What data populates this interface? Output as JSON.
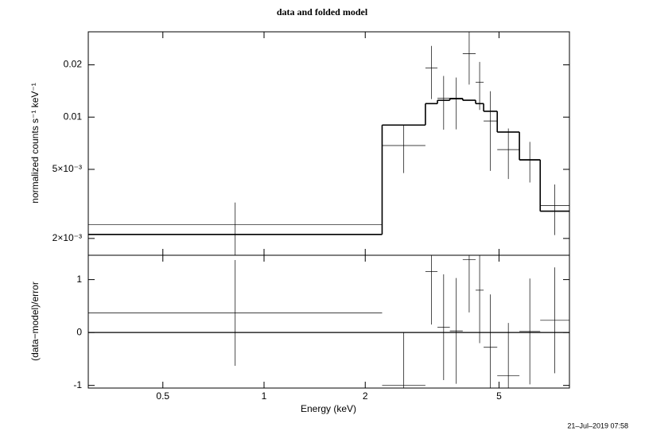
{
  "chart_data": [
    {
      "type": "step",
      "title": "data and folded model",
      "ylabel": "normalized counts s⁻¹ keV⁻¹",
      "xlog": true,
      "ylog": true,
      "xlim": [
        0.3,
        8.1
      ],
      "ylim": [
        0.0016,
        0.031
      ],
      "yticks": [
        {
          "value": 0.002,
          "label": "2×10⁻³"
        },
        {
          "value": 0.005,
          "label": "5×10⁻³"
        },
        0.01,
        0.02
      ],
      "bins": [
        0.3,
        2.245,
        3.02,
        3.28,
        3.57,
        3.9,
        4.26,
        4.5,
        4.94,
        5.75,
        6.63,
        8.1
      ],
      "data": {
        "color": "#000000",
        "values": [
          0.0024,
          0.00686,
          0.0192,
          0.01286,
          0.0127,
          0.0232,
          0.0159,
          0.0095,
          0.0065,
          0.0057,
          0.00309
        ],
        "errors": [
          0.00082,
          0.0021,
          0.0065,
          0.0044,
          0.0042,
          0.0078,
          0.0049,
          0.0046,
          0.0021,
          0.0015,
          0.001
        ]
      },
      "model": {
        "color": "#000000",
        "values": [
          0.00211,
          0.009,
          0.01196,
          0.0125,
          0.0128,
          0.0125,
          0.01196,
          0.0108,
          0.0082,
          0.00567,
          0.00287
        ]
      }
    },
    {
      "type": "residual",
      "xlabel": "Energy (keV)",
      "ylabel": "(data−model)/error",
      "xticks": [
        0.5,
        1,
        2,
        5
      ],
      "ylim": [
        -1.05,
        1.46
      ],
      "yticks": [
        -1,
        0,
        1
      ],
      "hline": 0,
      "color": "#000000",
      "values": [
        0.37,
        -1.0,
        1.15,
        0.1,
        0.03,
        1.38,
        0.8,
        -0.28,
        -0.82,
        0.02,
        0.23
      ],
      "errors": [
        1,
        1,
        1,
        1,
        1,
        1,
        1,
        1,
        1,
        1,
        1
      ]
    }
  ],
  "timestamp": "21–Jul–2019 07:58"
}
